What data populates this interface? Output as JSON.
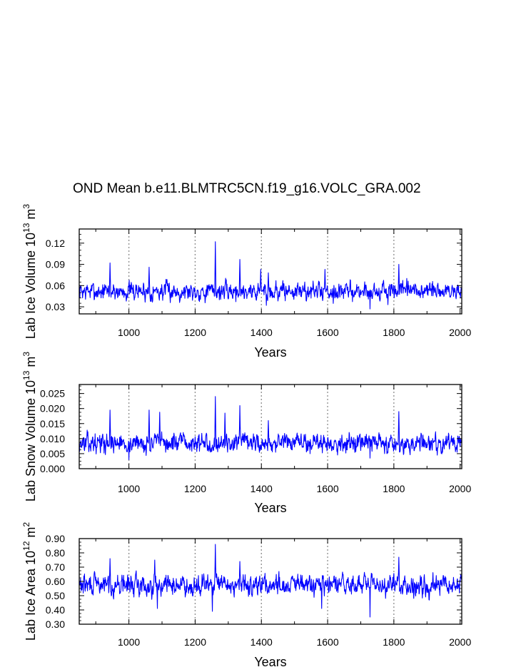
{
  "title": "OND Mean b.e11.BLMTRC5CN.f19_g16.VOLC_GRA.002",
  "colors": {
    "series": "#0000ff",
    "grid": "#8c8c8c",
    "axis": "#000000"
  },
  "chart_data": [
    {
      "type": "line",
      "title": "OND Mean b.e11.BLMTRC5CN.f19_g16.VOLC_GRA.002",
      "xlabel": "Years",
      "ylabel_parts": [
        "Lab Ice Volume 10",
        "13",
        " m",
        "3"
      ],
      "xlim": [
        850,
        2005
      ],
      "ylim": [
        0.02,
        0.14
      ],
      "xticks": [
        1000,
        1200,
        1400,
        1600,
        1800,
        2000
      ],
      "xtick_labels": [
        "1000",
        "1200",
        "1400",
        "1600",
        "1800",
        "2000"
      ],
      "yticks": [
        0.03,
        0.06,
        0.09,
        0.12
      ],
      "ytick_labels": [
        "0.03",
        "0.06",
        "0.09",
        "0.12"
      ],
      "grid_x": [
        1000,
        1200,
        1400,
        1600,
        1800
      ],
      "base": 0.052,
      "amp": 0.01,
      "seed": 7,
      "spikes": [
        [
          943,
          0.092
        ],
        [
          1061,
          0.086
        ],
        [
          1261,
          0.122
        ],
        [
          1335,
          0.097
        ],
        [
          1398,
          0.083
        ],
        [
          1421,
          0.078
        ],
        [
          1592,
          0.083
        ],
        [
          1815,
          0.09
        ]
      ],
      "dips": [
        [
          1415,
          0.032
        ],
        [
          1728,
          0.027
        ],
        [
          1782,
          0.033
        ]
      ]
    },
    {
      "type": "line",
      "xlabel": "Years",
      "ylabel_parts": [
        "Lab Snow Volume 10",
        "13",
        " m",
        "3"
      ],
      "xlim": [
        850,
        2005
      ],
      "ylim": [
        0.0,
        0.028
      ],
      "xticks": [
        1000,
        1200,
        1400,
        1600,
        1800,
        2000
      ],
      "xtick_labels": [
        "1000",
        "1200",
        "1400",
        "1600",
        "1800",
        "2000"
      ],
      "yticks": [
        0.0,
        0.005,
        0.01,
        0.015,
        0.02,
        0.025
      ],
      "ytick_labels": [
        "0.000",
        "0.005",
        "0.010",
        "0.015",
        "0.020",
        "0.025"
      ],
      "grid_x": [
        1000,
        1200,
        1400,
        1600,
        1800
      ],
      "base": 0.0085,
      "amp": 0.0024,
      "seed": 13,
      "spikes": [
        [
          943,
          0.0195
        ],
        [
          1061,
          0.0195
        ],
        [
          1093,
          0.0188
        ],
        [
          1261,
          0.024
        ],
        [
          1290,
          0.0185
        ],
        [
          1335,
          0.021
        ],
        [
          1421,
          0.016
        ],
        [
          1815,
          0.019
        ]
      ],
      "dips": [
        [
          1000,
          0.003
        ],
        [
          1728,
          0.0035
        ]
      ]
    },
    {
      "type": "line",
      "xlabel": "Years",
      "ylabel_parts": [
        "Lab Ice Area 10",
        "12",
        " m",
        "2"
      ],
      "xlim": [
        850,
        2005
      ],
      "ylim": [
        0.3,
        0.9
      ],
      "xticks": [
        1000,
        1200,
        1400,
        1600,
        1800,
        2000
      ],
      "xtick_labels": [
        "1000",
        "1200",
        "1400",
        "1600",
        "1800",
        "2000"
      ],
      "yticks": [
        0.3,
        0.4,
        0.5,
        0.6,
        0.7,
        0.8,
        0.9
      ],
      "ytick_labels": [
        "0.30",
        "0.40",
        "0.50",
        "0.60",
        "0.70",
        "0.80",
        "0.90"
      ],
      "grid_x": [
        1000,
        1200,
        1400,
        1600,
        1800
      ],
      "base": 0.575,
      "amp": 0.055,
      "seed": 29,
      "spikes": [
        [
          943,
          0.76
        ],
        [
          1078,
          0.75
        ],
        [
          1261,
          0.86
        ],
        [
          1335,
          0.74
        ],
        [
          1815,
          0.77
        ]
      ],
      "dips": [
        [
          1086,
          0.41
        ],
        [
          1252,
          0.39
        ],
        [
          1582,
          0.41
        ],
        [
          1728,
          0.35
        ]
      ]
    }
  ]
}
